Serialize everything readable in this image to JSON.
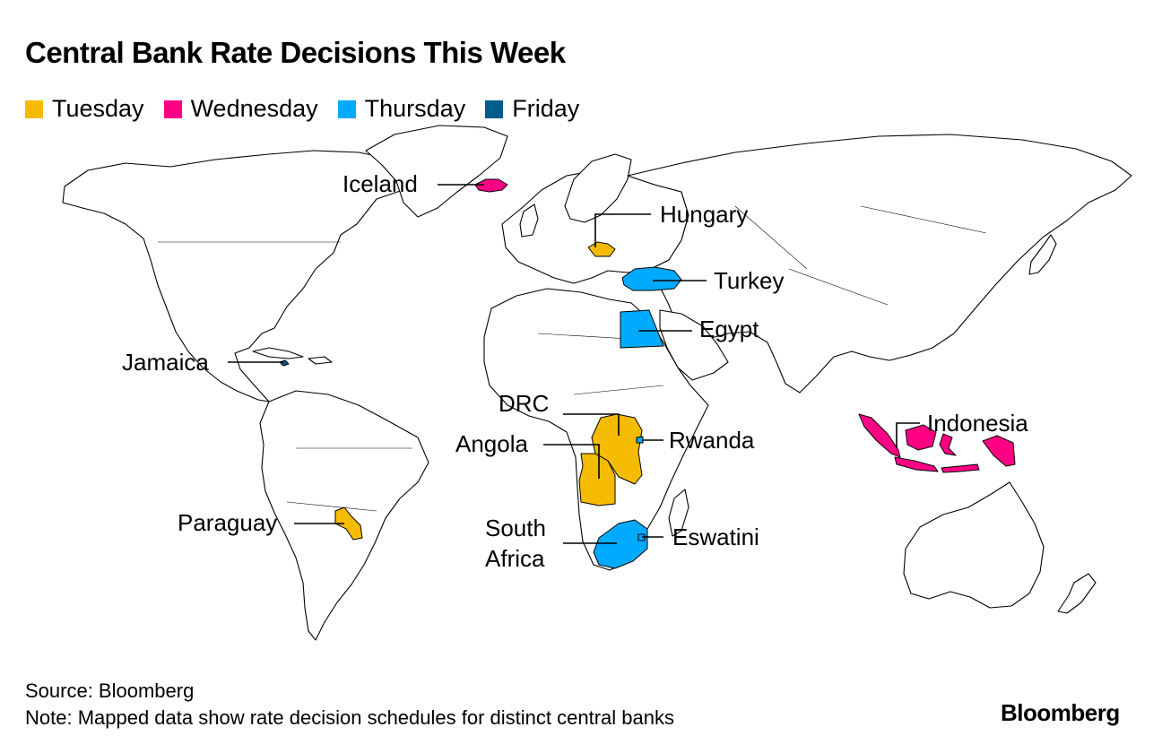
{
  "title": "Central Bank Rate Decisions This Week",
  "legend": [
    {
      "label": "Tuesday",
      "color": "#f5bb00"
    },
    {
      "label": "Wednesday",
      "color": "#ff0084"
    },
    {
      "label": "Thursday",
      "color": "#00aaff"
    },
    {
      "label": "Friday",
      "color": "#005c8a"
    }
  ],
  "countries": {
    "iceland": {
      "label": "Iceland",
      "day": "Wednesday"
    },
    "hungary": {
      "label": "Hungary",
      "day": "Tuesday"
    },
    "turkey": {
      "label": "Turkey",
      "day": "Thursday"
    },
    "egypt": {
      "label": "Egypt",
      "day": "Thursday"
    },
    "jamaica": {
      "label": "Jamaica",
      "day": "Friday"
    },
    "drc": {
      "label": "DRC",
      "day": "Tuesday"
    },
    "angola": {
      "label": "Angola",
      "day": "Tuesday"
    },
    "rwanda": {
      "label": "Rwanda",
      "day": "Thursday"
    },
    "paraguay": {
      "label": "Paraguay",
      "day": "Tuesday"
    },
    "south_africa": {
      "label_line1": "South",
      "label_line2": "Africa",
      "day": "Thursday"
    },
    "eswatini": {
      "label": "Eswatini",
      "day": "Thursday"
    },
    "indonesia": {
      "label": "Indonesia",
      "day": "Wednesday"
    }
  },
  "footer": {
    "source": "Source: Bloomberg",
    "note": "Note: Mapped data show rate decision schedules for distinct central banks"
  },
  "brand": "Bloomberg"
}
